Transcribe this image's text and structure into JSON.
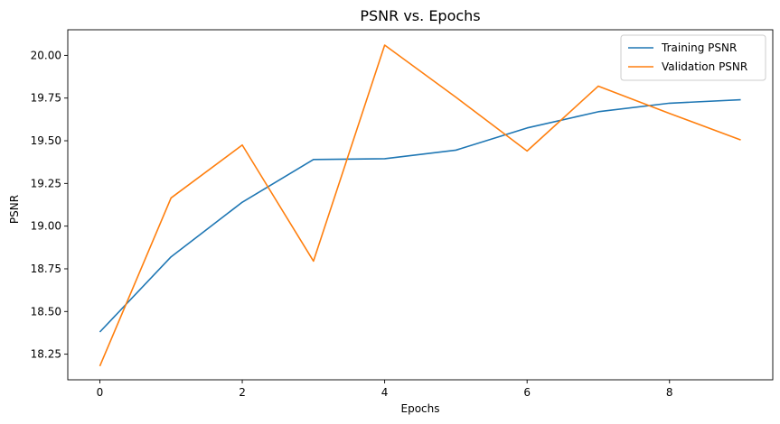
{
  "chart_data": {
    "type": "line",
    "title": "PSNR vs. Epochs",
    "xlabel": "Epochs",
    "ylabel": "PSNR",
    "x": [
      0,
      1,
      2,
      3,
      4,
      5,
      6,
      7,
      8,
      9
    ],
    "xlim": [
      -0.45,
      9.45
    ],
    "ylim": [
      18.1,
      20.15
    ],
    "xticks": [
      0,
      2,
      4,
      6,
      8
    ],
    "xtick_labels": [
      "0",
      "2",
      "4",
      "6",
      "8"
    ],
    "yticks": [
      18.25,
      18.5,
      18.75,
      19.0,
      19.25,
      19.5,
      19.75,
      20.0
    ],
    "ytick_labels": [
      "18.25",
      "18.50",
      "18.75",
      "19.00",
      "19.25",
      "19.50",
      "19.75",
      "20.00"
    ],
    "grid": false,
    "legend_position": "top-right",
    "series": [
      {
        "name": "Training PSNR",
        "color": "#1f77b4",
        "values": [
          18.38,
          18.82,
          19.14,
          19.39,
          19.395,
          19.445,
          19.575,
          19.67,
          19.72,
          19.74
        ]
      },
      {
        "name": "Validation PSNR",
        "color": "#ff7f0e",
        "values": [
          18.18,
          19.165,
          19.475,
          18.795,
          20.06,
          19.755,
          19.44,
          19.82,
          19.66,
          19.505
        ]
      }
    ]
  }
}
